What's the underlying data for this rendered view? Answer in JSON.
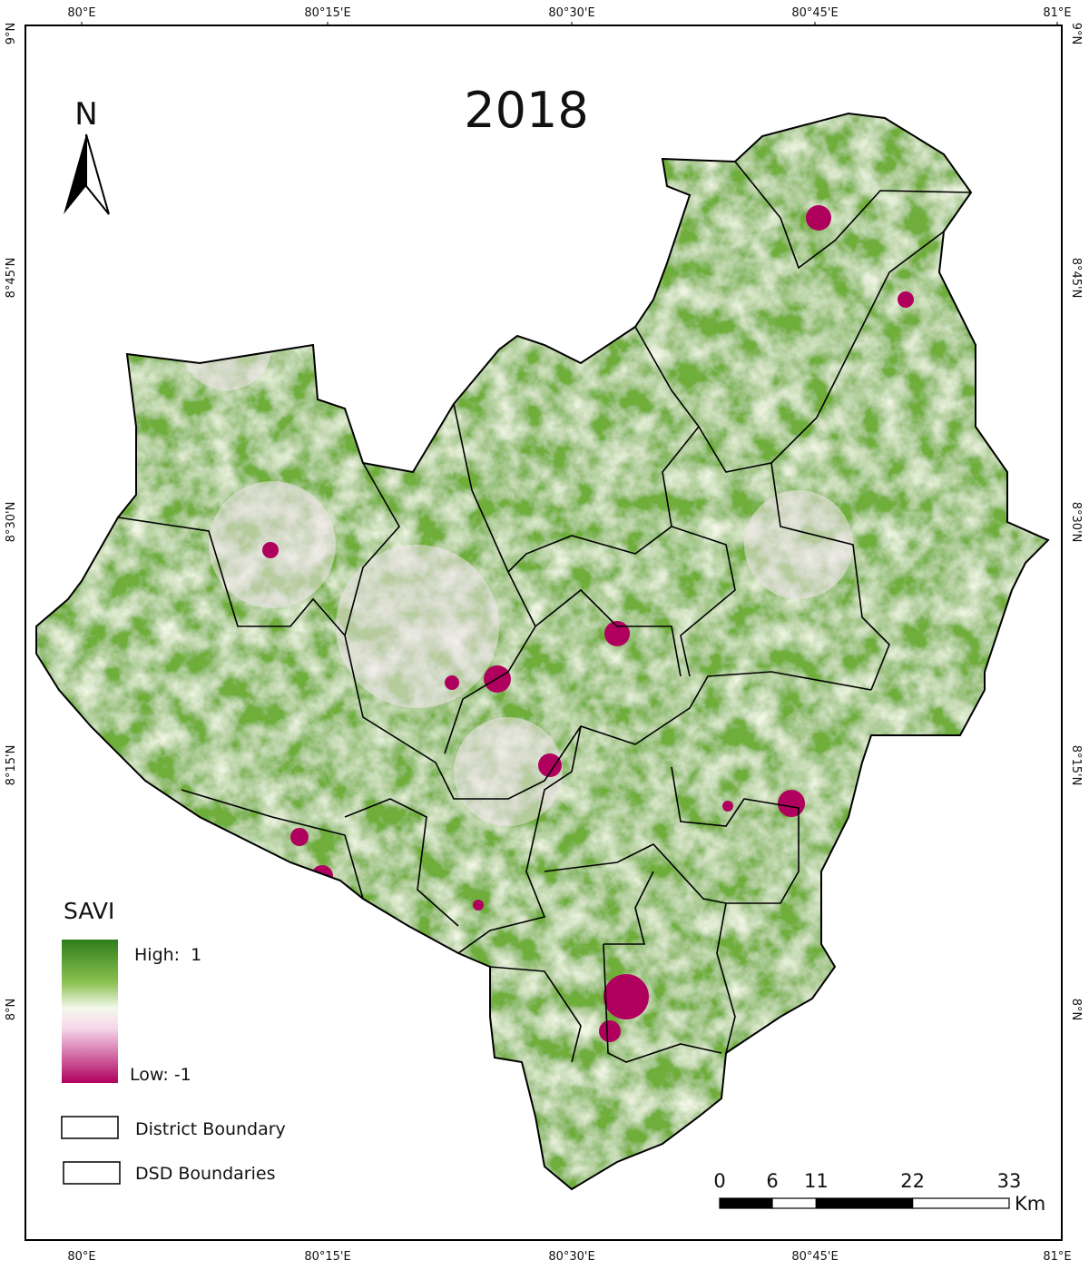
{
  "title": "2018",
  "north": "N",
  "longitudes": [
    "80°E",
    "80°15'E",
    "80°30'E",
    "80°45'E",
    "81°E"
  ],
  "latitudes": [
    "9°N",
    "8°45'N",
    "8°30'N",
    "8°15'N",
    "8°N"
  ],
  "legend": {
    "title": "SAVI",
    "high": "High:  1",
    "low": "Low: -1",
    "items": [
      "District Boundary",
      "DSD Boundaries"
    ]
  },
  "scale": {
    "ticks": [
      0,
      6,
      11,
      22,
      33
    ],
    "unit": "Km"
  }
}
